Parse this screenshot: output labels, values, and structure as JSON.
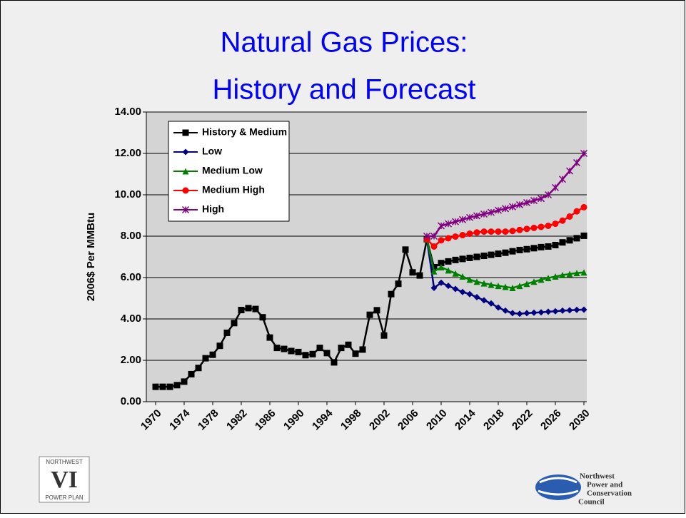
{
  "chart_data": {
    "type": "line",
    "title": [
      "Natural Gas Prices:",
      "History and Forecast"
    ],
    "y_label": "2006$ Per MMBtu",
    "x": [
      1970,
      1971,
      1972,
      1973,
      1974,
      1975,
      1976,
      1977,
      1978,
      1979,
      1980,
      1981,
      1982,
      1983,
      1984,
      1985,
      1986,
      1987,
      1988,
      1989,
      1990,
      1991,
      1992,
      1993,
      1994,
      1995,
      1996,
      1997,
      1998,
      1999,
      2000,
      2001,
      2002,
      2003,
      2004,
      2005,
      2006,
      2007,
      2008,
      2009,
      2010,
      2011,
      2012,
      2013,
      2014,
      2015,
      2016,
      2017,
      2018,
      2019,
      2020,
      2021,
      2022,
      2023,
      2024,
      2025,
      2026,
      2027,
      2028,
      2029,
      2030
    ],
    "xlim": [
      1968.7,
      2030.4
    ],
    "xticks": [
      1970,
      1974,
      1978,
      1982,
      1986,
      1990,
      1994,
      1998,
      2002,
      2006,
      2010,
      2014,
      2018,
      2022,
      2026,
      2030
    ],
    "ylim": [
      0,
      14
    ],
    "yticks": [
      {
        "value": 0,
        "label": "0.00"
      },
      {
        "value": 2,
        "label": "2.00"
      },
      {
        "value": 4,
        "label": "4.00"
      },
      {
        "value": 6,
        "label": "6.00"
      },
      {
        "value": 8,
        "label": "8.00"
      },
      {
        "value": 10,
        "label": "10.00"
      },
      {
        "value": 12,
        "label": "12.00"
      },
      {
        "value": 14,
        "label": "14.00"
      }
    ],
    "grid": true,
    "legend": "top-left",
    "series": [
      {
        "name": "History & Medium",
        "color": "#000000",
        "marker": "square",
        "values": [
          0.72,
          0.72,
          0.72,
          0.8,
          0.97,
          1.33,
          1.63,
          2.1,
          2.27,
          2.7,
          3.33,
          3.8,
          4.43,
          4.52,
          4.48,
          4.08,
          3.1,
          2.6,
          2.55,
          2.45,
          2.4,
          2.25,
          2.3,
          2.6,
          2.35,
          1.9,
          2.6,
          2.75,
          2.32,
          2.52,
          4.2,
          4.42,
          3.2,
          5.2,
          5.7,
          7.35,
          6.25,
          6.1,
          7.85,
          6.5,
          6.7,
          6.78,
          6.85,
          6.9,
          6.95,
          7.0,
          7.05,
          7.1,
          7.15,
          7.2,
          7.27,
          7.33,
          7.37,
          7.42,
          7.47,
          7.5,
          7.57,
          7.7,
          7.8,
          7.9,
          8.02
        ]
      },
      {
        "name": "Low",
        "color": "#000080",
        "marker": "diamond",
        "values": [
          null,
          null,
          null,
          null,
          null,
          null,
          null,
          null,
          null,
          null,
          null,
          null,
          null,
          null,
          null,
          null,
          null,
          null,
          null,
          null,
          null,
          null,
          null,
          null,
          null,
          null,
          null,
          null,
          null,
          null,
          null,
          null,
          null,
          null,
          null,
          null,
          null,
          null,
          7.85,
          5.5,
          5.75,
          5.6,
          5.45,
          5.3,
          5.2,
          5.05,
          4.9,
          4.75,
          4.55,
          4.4,
          4.28,
          4.25,
          4.28,
          4.3,
          4.32,
          4.35,
          4.37,
          4.4,
          4.42,
          4.44,
          4.45
        ]
      },
      {
        "name": "Medium Low",
        "color": "#008000",
        "marker": "triangle",
        "values": [
          null,
          null,
          null,
          null,
          null,
          null,
          null,
          null,
          null,
          null,
          null,
          null,
          null,
          null,
          null,
          null,
          null,
          null,
          null,
          null,
          null,
          null,
          null,
          null,
          null,
          null,
          null,
          null,
          null,
          null,
          null,
          null,
          null,
          null,
          null,
          null,
          null,
          null,
          7.85,
          6.3,
          6.5,
          6.35,
          6.2,
          6.05,
          5.9,
          5.8,
          5.72,
          5.65,
          5.6,
          5.55,
          5.5,
          5.6,
          5.7,
          5.8,
          5.9,
          5.98,
          6.05,
          6.12,
          6.17,
          6.22,
          6.25
        ]
      },
      {
        "name": "Medium High",
        "color": "#ff0000",
        "marker": "circle",
        "values": [
          null,
          null,
          null,
          null,
          null,
          null,
          null,
          null,
          null,
          null,
          null,
          null,
          null,
          null,
          null,
          null,
          null,
          null,
          null,
          null,
          null,
          null,
          null,
          null,
          null,
          null,
          null,
          null,
          null,
          null,
          null,
          null,
          null,
          null,
          null,
          null,
          null,
          null,
          7.85,
          7.5,
          7.8,
          7.9,
          7.98,
          8.05,
          8.12,
          8.18,
          8.22,
          8.22,
          8.22,
          8.22,
          8.25,
          8.3,
          8.35,
          8.4,
          8.45,
          8.5,
          8.6,
          8.75,
          8.95,
          9.2,
          9.4
        ]
      },
      {
        "name": "High",
        "color": "#800080",
        "marker": "star",
        "values": [
          null,
          null,
          null,
          null,
          null,
          null,
          null,
          null,
          null,
          null,
          null,
          null,
          null,
          null,
          null,
          null,
          null,
          null,
          null,
          null,
          null,
          null,
          null,
          null,
          null,
          null,
          null,
          null,
          null,
          null,
          null,
          null,
          null,
          null,
          null,
          null,
          null,
          null,
          8.0,
          8.0,
          8.5,
          8.6,
          8.7,
          8.8,
          8.9,
          8.98,
          9.07,
          9.15,
          9.25,
          9.33,
          9.42,
          9.52,
          9.62,
          9.72,
          9.82,
          10.0,
          10.35,
          10.75,
          11.15,
          11.55,
          12.0
        ]
      }
    ]
  },
  "logos": {
    "left": [
      "NORTHWEST",
      "VI",
      "POWER PLAN"
    ],
    "right": [
      "Northwest",
      "Power and",
      "Conservation",
      "Council"
    ]
  }
}
